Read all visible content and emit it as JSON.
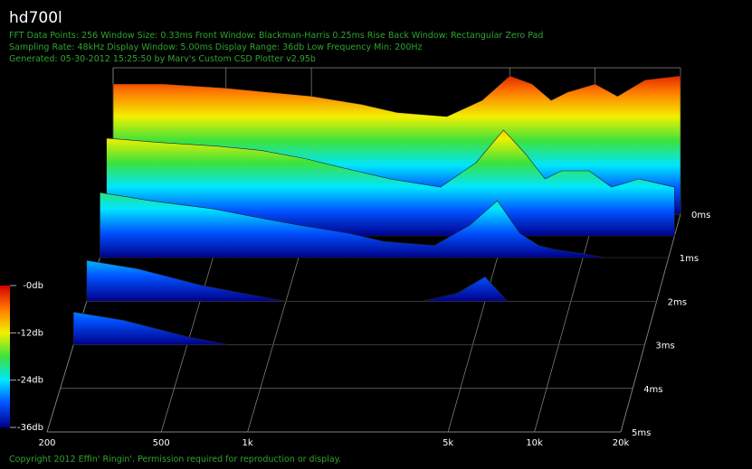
{
  "chart_data": {
    "type": "waterfall",
    "title": "hd700l",
    "info": [
      "FFT Data Points: 256   Window Size: 0.33ms   Front Window: Blackman-Harris 0.25ms Rise   Back Window: Rectangular Zero Pad",
      "Sampling Rate: 48kHz   Display Window: 5.00ms   Display Range: 36db   Low Frequency Min: 200Hz",
      "Generated: 05-30-2012 15:25:50 by Marv's Custom CSD Plotter v2.95b"
    ],
    "footer": "Copyright 2012 Effin' Ringin'. Permission required for reproduction or display.",
    "frequencies": [
      200,
      300,
      500,
      700,
      1000,
      1500,
      2000,
      3000,
      4000,
      5000,
      6000,
      7000,
      8000,
      10000,
      12000,
      15000,
      20000
    ],
    "series": [
      {
        "t": 0,
        "values": [
          -4,
          -4,
          -5,
          -6,
          -7,
          -9,
          -11,
          -12,
          -8,
          -2,
          -4,
          -8,
          -6,
          -4,
          -7,
          -3,
          -2
        ]
      },
      {
        "t": 0.5,
        "values": [
          -12,
          -13,
          -14,
          -15,
          -17,
          -20,
          -22,
          -24,
          -18,
          -10,
          -16,
          -22,
          -20,
          -20,
          -24,
          -22,
          -24
        ]
      },
      {
        "t": 1,
        "values": [
          -20,
          -22,
          -24,
          -26,
          -28,
          -30,
          -32,
          -33,
          -28,
          -22,
          -30,
          -33,
          -34,
          -35,
          -36,
          -36,
          -36
        ]
      },
      {
        "t": 2,
        "values": [
          -26,
          -28,
          -32,
          -34,
          -36,
          -36,
          -36,
          -36,
          -34,
          -30,
          -36,
          -36,
          -36,
          -36,
          -36,
          -36,
          -36
        ]
      },
      {
        "t": 3,
        "values": [
          -28,
          -30,
          -34,
          -36,
          -36,
          -36,
          -36,
          -36,
          -36,
          -36,
          -36,
          -36,
          -36,
          -36,
          -36,
          -36,
          -36
        ]
      }
    ],
    "xlim": [
      200,
      20000
    ],
    "log_x": true,
    "xticks": [
      200,
      500,
      {
        "value": 1000,
        "label": "1k"
      },
      {
        "value": 5000,
        "label": "5k"
      },
      {
        "value": 10000,
        "label": "10k"
      },
      {
        "value": 20000,
        "label": "20k"
      }
    ],
    "zlim": [
      0,
      5
    ],
    "zticks": [
      {
        "value": 0,
        "label": "0ms"
      },
      {
        "value": 1,
        "label": "1ms"
      },
      {
        "value": 2,
        "label": "2ms"
      },
      {
        "value": 3,
        "label": "3ms"
      },
      {
        "value": 4,
        "label": "4ms"
      },
      {
        "value": 5,
        "label": "5ms"
      }
    ],
    "ylim": [
      -36,
      0
    ],
    "yticks": [
      {
        "value": 0,
        "label": "-0db"
      },
      {
        "value": -12,
        "label": "-12db"
      },
      {
        "value": -24,
        "label": "-24db"
      },
      {
        "value": -36,
        "label": "-36db"
      }
    ],
    "colormap": [
      "#d40000",
      "#ff7a00",
      "#f2f000",
      "#3ce23c",
      "#00e6ff",
      "#0050ff",
      "#00008a"
    ],
    "grid": true
  }
}
